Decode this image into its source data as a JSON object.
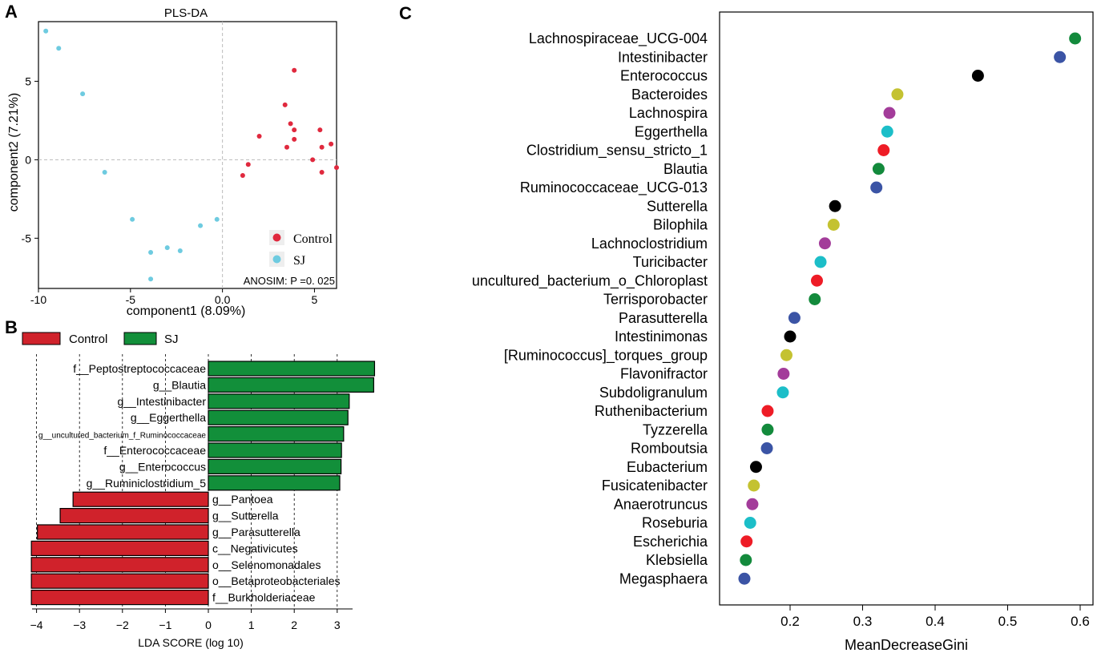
{
  "panels": {
    "a": "A",
    "b": "B",
    "c": "C"
  },
  "chart_data": [
    {
      "type": "scatter",
      "title": "PLS-DA",
      "xlabel": "component1 (8.09%)",
      "ylabel": "component2 (7.21%)",
      "xlim": [
        -10,
        6.2
      ],
      "ylim": [
        -8.2,
        8.8
      ],
      "xticks": [
        -10,
        -5,
        0,
        5
      ],
      "yticks": [
        -5,
        0,
        5
      ],
      "tick_labels_x": [
        "-10",
        "-5",
        "0.0",
        "5"
      ],
      "tick_labels_y": [
        "-5",
        "0",
        "5"
      ],
      "annotation": "ANOSIM: P =0. 025",
      "legend": {
        "position": "bottom-right",
        "entries": [
          "Control",
          "SJ"
        ]
      },
      "series": [
        {
          "name": "Control",
          "color": "#e0293e",
          "points": [
            [
              3.9,
              5.7
            ],
            [
              3.4,
              3.5
            ],
            [
              3.7,
              2.3
            ],
            [
              3.9,
              1.9
            ],
            [
              5.3,
              1.9
            ],
            [
              2.0,
              1.5
            ],
            [
              3.9,
              1.3
            ],
            [
              5.9,
              1.0
            ],
            [
              3.5,
              0.8
            ],
            [
              5.4,
              0.8
            ],
            [
              4.9,
              0.0
            ],
            [
              1.4,
              -0.3
            ],
            [
              6.2,
              -0.5
            ],
            [
              1.1,
              -1.0
            ],
            [
              5.4,
              -0.8
            ]
          ]
        },
        {
          "name": "SJ",
          "color": "#6ecbe0",
          "points": [
            [
              -9.6,
              8.2
            ],
            [
              -8.9,
              7.1
            ],
            [
              -7.6,
              4.2
            ],
            [
              -6.4,
              -0.8
            ],
            [
              -4.9,
              -3.8
            ],
            [
              -1.2,
              -4.2
            ],
            [
              -0.3,
              -3.8
            ],
            [
              -3.0,
              -5.6
            ],
            [
              -2.3,
              -5.8
            ],
            [
              -3.9,
              -5.9
            ],
            [
              -3.9,
              -7.6
            ]
          ]
        }
      ]
    },
    {
      "type": "bar",
      "orientation": "horizontal",
      "xlabel": "LDA SCORE (log 10)",
      "xlim": [
        -4.2,
        3.9
      ],
      "xticks": [
        -4,
        -3,
        -2,
        -1,
        0,
        1,
        2,
        3
      ],
      "tick_labels": [
        "−4",
        "−3",
        "−2",
        "−1",
        "0",
        "1",
        "2",
        "3"
      ],
      "legend": {
        "position": "top",
        "entries": [
          "Control",
          "SJ"
        ]
      },
      "colors": {
        "Control": "#d0222b",
        "SJ": "#128f3a"
      },
      "categories": [
        "f__Peptostreptococcaceae",
        "g__Blautia",
        "g__Intestinibacter",
        "g__Eggerthella",
        "g__uncultured_bacterium_f_Ruminococcaceae",
        "f__Enterococcaceae",
        "g__Enterococcus",
        "g__Ruminiclostridium_5",
        "g__Pantoea",
        "g__Sutterella",
        "g__Parasutterella",
        "c__Negativicutes",
        "o__Selenomonadales",
        "o__Betaproteobacteriales",
        "f__Burkholderiaceae"
      ],
      "values": [
        3.87,
        3.85,
        3.28,
        3.25,
        3.15,
        3.1,
        3.09,
        3.06,
        -3.15,
        -3.45,
        -3.98,
        -4.12,
        -4.12,
        -4.12,
        -4.12
      ],
      "groups": [
        "SJ",
        "SJ",
        "SJ",
        "SJ",
        "SJ",
        "SJ",
        "SJ",
        "SJ",
        "Control",
        "Control",
        "Control",
        "Control",
        "Control",
        "Control",
        "Control"
      ]
    },
    {
      "type": "scatter",
      "subtype": "dot",
      "xlabel": "MeanDecreaseGini",
      "xlim": [
        0.1,
        0.62
      ],
      "xticks": [
        0.2,
        0.3,
        0.4,
        0.5,
        0.6
      ],
      "tick_labels": [
        "0.2",
        "0.3",
        "0.4",
        "0.5",
        "0.6"
      ],
      "categories": [
        "Lachnospiraceae_UCG-004",
        "Intestinibacter",
        "Enterococcus",
        "Bacteroides",
        "Lachnospira",
        "Eggerthella",
        "Clostridium_sensu_stricto_1",
        "Blautia",
        "Ruminococcaceae_UCG-013",
        "Sutterella",
        "Bilophila",
        "Lachnoclostridium",
        "Turicibacter",
        "uncultured_bacterium_o_Chloroplast",
        "Terrisporobacter",
        "Parasutterella",
        "Intestinimonas",
        "[Ruminococcus]_torques_group",
        "Flavonifractor",
        "Subdoligranulum",
        "Ruthenibacterium",
        "Tyzzerella",
        "Romboutsia",
        "Eubacterium",
        "Fusicatenibacter",
        "Anaerotruncus",
        "Roseburia",
        "Escherichia",
        "Klebsiella",
        "Megasphaera"
      ],
      "values": [
        0.593,
        0.572,
        0.459,
        0.348,
        0.337,
        0.334,
        0.329,
        0.322,
        0.319,
        0.262,
        0.26,
        0.248,
        0.242,
        0.237,
        0.234,
        0.206,
        0.2,
        0.195,
        0.191,
        0.19,
        0.169,
        0.169,
        0.168,
        0.153,
        0.15,
        0.148,
        0.145,
        0.14,
        0.139,
        0.137
      ],
      "colors": [
        "#138a3c",
        "#3b54a5",
        "#000000",
        "#c4c231",
        "#a33c9a",
        "#1cbec8",
        "#ee1c26",
        "#138a3c",
        "#3b54a5",
        "#000000",
        "#c4c231",
        "#a33c9a",
        "#1cbec8",
        "#ee1c26",
        "#138a3c",
        "#3b54a5",
        "#000000",
        "#c4c231",
        "#a33c9a",
        "#1cbec8",
        "#ee1c26",
        "#138a3c",
        "#3b54a5",
        "#000000",
        "#c4c231",
        "#a33c9a",
        "#1cbec8",
        "#ee1c26",
        "#138a3c",
        "#3b54a5"
      ]
    }
  ]
}
